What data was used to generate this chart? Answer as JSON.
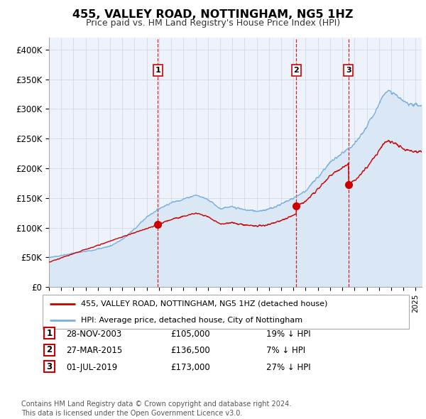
{
  "title": "455, VALLEY ROAD, NOTTINGHAM, NG5 1HZ",
  "subtitle": "Price paid vs. HM Land Registry's House Price Index (HPI)",
  "xlim": [
    1995.0,
    2025.5
  ],
  "ylim": [
    0,
    420000
  ],
  "yticks": [
    0,
    50000,
    100000,
    150000,
    200000,
    250000,
    300000,
    350000,
    400000
  ],
  "ytick_labels": [
    "£0",
    "£50K",
    "£100K",
    "£150K",
    "£200K",
    "£250K",
    "£300K",
    "£350K",
    "£400K"
  ],
  "sale_color": "#cc0000",
  "hpi_color": "#7aaedc",
  "hpi_fill_color": "#dae8f5",
  "background_color": "#eef3fb",
  "grid_color": "#c8d4e8",
  "sale1_x": 2003.91,
  "sale1_y": 105000,
  "sale2_x": 2015.24,
  "sale2_y": 136500,
  "sale3_x": 2019.5,
  "sale3_y": 173000,
  "table_rows": [
    {
      "num": "1",
      "date": "28-NOV-2003",
      "price": "£105,000",
      "pct": "19% ↓ HPI"
    },
    {
      "num": "2",
      "date": "27-MAR-2015",
      "price": "£136,500",
      "pct": "7% ↓ HPI"
    },
    {
      "num": "3",
      "date": "01-JUL-2019",
      "price": "£173,000",
      "pct": "27% ↓ HPI"
    }
  ],
  "legend_sale_label": "455, VALLEY ROAD, NOTTINGHAM, NG5 1HZ (detached house)",
  "legend_hpi_label": "HPI: Average price, detached house, City of Nottingham",
  "footer": "Contains HM Land Registry data © Crown copyright and database right 2024.\nThis data is licensed under the Open Government Licence v3.0."
}
